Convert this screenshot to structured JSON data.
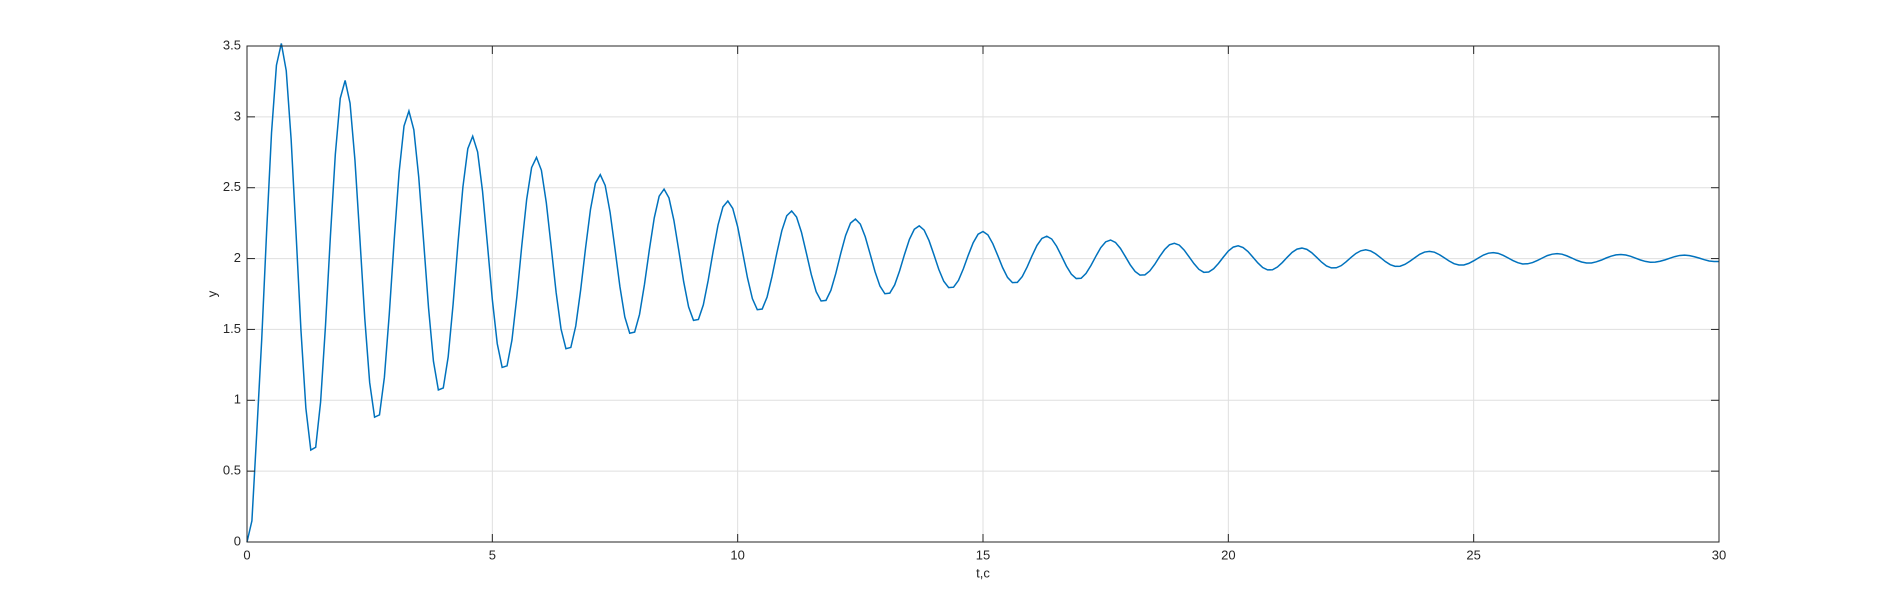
{
  "chart_data": {
    "type": "line",
    "xlabel": "t,c",
    "ylabel": "y",
    "xlim": [
      0,
      30
    ],
    "ylim": [
      0,
      3.5
    ],
    "xticks": [
      0,
      5,
      10,
      15,
      20,
      25,
      30
    ],
    "yticks": [
      0,
      0.5,
      1,
      1.5,
      2,
      2.5,
      3,
      3.5
    ],
    "grid": true,
    "color": "#0072bd",
    "x": [
      0,
      0.1,
      0.2,
      0.3,
      0.4,
      0.5,
      0.6,
      0.7,
      0.8,
      0.9,
      1,
      1.1,
      1.2,
      1.3,
      1.4,
      1.5,
      1.6,
      1.7,
      1.8,
      1.9,
      2,
      2.1,
      2.2,
      2.3,
      2.4,
      2.5,
      2.6,
      2.7,
      2.8,
      2.9,
      3,
      3.1,
      3.2,
      3.3,
      3.4,
      3.5,
      3.6,
      3.7,
      3.8,
      3.9,
      4,
      4.1,
      4.2,
      4.3,
      4.4,
      4.5,
      4.6,
      4.7,
      4.8,
      4.9,
      5,
      5.1,
      5.2,
      5.3,
      5.4,
      5.5,
      5.6,
      5.7,
      5.8,
      5.9,
      6,
      6.1,
      6.2,
      6.3,
      6.4,
      6.5,
      6.6,
      6.7,
      6.8,
      6.9,
      7,
      7.1,
      7.2,
      7.3,
      7.4,
      7.5,
      7.6,
      7.7,
      7.8,
      7.9,
      8,
      8.1,
      8.2,
      8.3,
      8.4,
      8.5,
      8.6,
      8.7,
      8.8,
      8.9,
      9,
      9.1,
      9.2,
      9.3,
      9.4,
      9.5,
      9.6,
      9.7,
      9.8,
      9.9,
      10,
      10.1,
      10.2,
      10.3,
      10.4,
      10.5,
      10.6,
      10.7,
      10.8,
      10.9,
      11,
      11.1,
      11.2,
      11.3,
      11.4,
      11.5,
      11.6,
      11.7,
      11.8,
      11.9,
      12,
      12.1,
      12.2,
      12.3,
      12.4,
      12.5,
      12.6,
      12.7,
      12.8,
      12.9,
      13,
      13.1,
      13.2,
      13.3,
      13.4,
      13.5,
      13.6,
      13.7,
      13.8,
      13.9,
      14,
      14.1,
      14.2,
      14.3,
      14.4,
      14.5,
      14.6,
      14.7,
      14.8,
      14.9,
      15,
      15.1,
      15.2,
      15.3,
      15.4,
      15.5,
      15.6,
      15.7,
      15.8,
      15.9,
      16,
      16.1,
      16.2,
      16.3,
      16.4,
      16.5,
      16.6,
      16.7,
      16.8,
      16.9,
      17,
      17.1,
      17.2,
      17.3,
      17.4,
      17.5,
      17.6,
      17.7,
      17.8,
      17.9,
      18,
      18.1,
      18.2,
      18.3,
      18.4,
      18.5,
      18.6,
      18.7,
      18.8,
      18.9,
      19,
      19.1,
      19.2,
      19.3,
      19.4,
      19.5,
      19.6,
      19.7,
      19.8,
      19.9,
      20,
      20.1,
      20.2,
      20.3,
      20.4,
      20.5,
      20.6,
      20.7,
      20.8,
      20.9,
      21,
      21.1,
      21.2,
      21.3,
      21.4,
      21.5,
      21.6,
      21.7,
      21.8,
      21.9,
      22,
      22.1,
      22.2,
      22.3,
      22.4,
      22.5,
      22.6,
      22.7,
      22.8,
      22.9,
      23,
      23.1,
      23.2,
      23.3,
      23.4,
      23.5,
      23.6,
      23.7,
      23.8,
      23.9,
      24,
      24.1,
      24.2,
      24.3,
      24.4,
      24.5,
      24.6,
      24.7,
      24.8,
      24.9,
      25,
      25.1,
      25.2,
      25.3,
      25.4,
      25.5,
      25.6,
      25.7,
      25.8,
      25.9,
      26,
      26.1,
      26.2,
      26.3,
      26.4,
      26.5,
      26.6,
      26.7,
      26.8,
      26.9,
      27,
      27.1,
      27.2,
      27.3,
      27.4,
      27.5,
      27.6,
      27.7,
      27.8,
      27.9,
      28,
      28.1,
      28.2,
      28.3,
      28.4,
      28.5,
      28.6,
      28.7,
      28.8,
      28.9,
      29,
      29.1,
      29.2,
      29.3,
      29.4,
      29.5,
      29.6,
      29.7,
      29.8,
      29.9,
      30
    ],
    "values": [
      0,
      0.15,
      0.778,
      1.43,
      2.191,
      2.888,
      3.364,
      3.518,
      3.325,
      2.838,
      2.175,
      1.492,
      0.943,
      0.649,
      0.668,
      0.988,
      1.528,
      2.158,
      2.735,
      3.13,
      3.257,
      3.097,
      2.694,
      2.145,
      1.579,
      1.125,
      0.881,
      0.897,
      1.162,
      1.609,
      2.131,
      2.609,
      2.935,
      3.041,
      2.909,
      2.575,
      2.12,
      1.652,
      1.275,
      1.073,
      1.087,
      1.306,
      1.676,
      2.109,
      2.504,
      2.775,
      2.863,
      2.753,
      2.476,
      2.1,
      1.711,
      1.4,
      1.232,
      1.243,
      1.425,
      1.732,
      2.09,
      2.418,
      2.642,
      2.714,
      2.623,
      2.394,
      2.082,
      1.761,
      1.503,
      1.364,
      1.373,
      1.524,
      1.778,
      2.074,
      2.346,
      2.531,
      2.592,
      2.516,
      2.326,
      2.068,
      1.802,
      1.588,
      1.473,
      1.481,
      1.606,
      1.816,
      2.062,
      2.287,
      2.44,
      2.49,
      2.428,
      2.27,
      2.057,
      1.836,
      1.659,
      1.564,
      1.57,
      1.673,
      1.848,
      2.051,
      2.237,
      2.365,
      2.406,
      2.354,
      2.224,
      2.047,
      1.864,
      1.717,
      1.639,
      1.644,
      1.729,
      1.874,
      2.042,
      2.197,
      2.302,
      2.336,
      2.293,
      2.186,
      2.039,
      1.888,
      1.766,
      1.701,
      1.705,
      1.776,
      1.895,
      2.035,
      2.163,
      2.25,
      2.279,
      2.243,
      2.154,
      2.032,
      1.907,
      1.806,
      1.752,
      1.756,
      1.814,
      1.913,
      2.029,
      2.135,
      2.207,
      2.231,
      2.201,
      2.127,
      2.027,
      1.923,
      1.84,
      1.795,
      1.798,
      1.846,
      1.928,
      2.024,
      2.112,
      2.172,
      2.191,
      2.167,
      2.105,
      2.022,
      1.936,
      1.867,
      1.83,
      1.832,
      1.873,
      1.941,
      2.02,
      2.093,
      2.142,
      2.158,
      2.138,
      2.087,
      2.018,
      1.947,
      1.89,
      1.859,
      1.861,
      1.895,
      1.951,
      2.016,
      2.077,
      2.118,
      2.131,
      2.114,
      2.072,
      2.015,
      1.956,
      1.909,
      1.883,
      1.885,
      1.913,
      1.959,
      2.014,
      2.063,
      2.097,
      2.108,
      2.095,
      2.06,
      2.012,
      1.964,
      1.924,
      1.903,
      1.905,
      1.928,
      1.966,
      2.011,
      2.053,
      2.081,
      2.09,
      2.078,
      2.05,
      2.01,
      1.97,
      1.937,
      1.92,
      1.921,
      1.94,
      1.972,
      2.009,
      2.044,
      2.067,
      2.074,
      2.065,
      2.041,
      2.009,
      1.975,
      1.948,
      1.934,
      1.935,
      1.95,
      1.977,
      2.008,
      2.036,
      2.055,
      2.062,
      2.054,
      2.034,
      2.007,
      1.979,
      1.957,
      1.945,
      1.946,
      1.959,
      1.981,
      2.006,
      2.03,
      2.046,
      2.051,
      2.045,
      2.028,
      2.006,
      1.983,
      1.964,
      1.955,
      1.955,
      1.966,
      1.984,
      2.005,
      2.025,
      2.038,
      2.042,
      2.037,
      2.023,
      2.005,
      1.986,
      1.971,
      1.962,
      1.963,
      1.972,
      1.987,
      2.004,
      2.021,
      2.031,
      2.035,
      2.031,
      2.019,
      2.004,
      1.988,
      1.976,
      1.969,
      1.969,
      1.977,
      1.989,
      2.004,
      2.017,
      2.026,
      2.029,
      2.025,
      2.016,
      2.003,
      1.99,
      1.98,
      1.974,
      1.975,
      1.981,
      1.991,
      2.003,
      2.014,
      2.022,
      2.024,
      2.021,
      2.013,
      2.003,
      1.992,
      1.983,
      1.979,
      1.979
    ]
  }
}
